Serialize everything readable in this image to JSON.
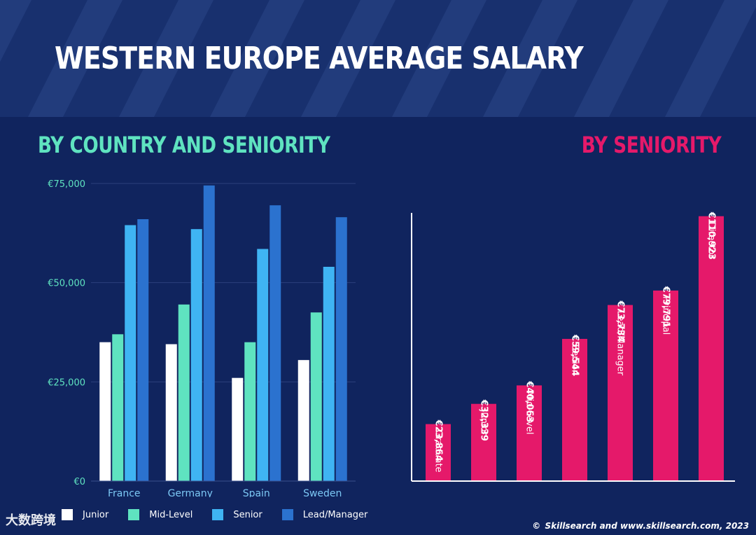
{
  "title": "WESTERN EUROPE AVERAGE SALARY",
  "watermark": "大数跨境",
  "footer": {
    "copyright": "©",
    "text": "Skillsearch and www.skillsearch.com, 2023"
  },
  "colors": {
    "junior": "#ffffff",
    "mid_level": "#5fe3c0",
    "senior": "#3fb4f3",
    "lead_manager": "#2b72cf",
    "seniority_bar": "#e5196a",
    "background": "#10245e",
    "banner": "#18306e"
  },
  "chart_data": [
    {
      "type": "bar",
      "title": "BY COUNTRY AND SENIORITY",
      "categories": [
        "France",
        "Germany",
        "Spain",
        "Sweden"
      ],
      "y_ticks": [
        "€0",
        "€25,000",
        "€50,000",
        "€75,000"
      ],
      "y_tick_values": [
        0,
        25000,
        50000,
        75000
      ],
      "ylim": [
        0,
        75000
      ],
      "series": [
        {
          "name": "Junior",
          "color_key": "junior",
          "values": [
            35000,
            34500,
            26000,
            30500
          ]
        },
        {
          "name": "Mid-Level",
          "color_key": "mid_level",
          "values": [
            37000,
            44500,
            35000,
            42500
          ]
        },
        {
          "name": "Senior",
          "color_key": "senior",
          "values": [
            64500,
            63500,
            58500,
            54000
          ]
        },
        {
          "name": "Lead/Manager",
          "color_key": "lead_manager",
          "values": [
            66000,
            74500,
            69500,
            66500
          ]
        }
      ],
      "legend_position": "bottom"
    },
    {
      "type": "bar",
      "title": "BY SENIORITY",
      "categories": [
        "Graduate",
        "Junior",
        "Mid-Level",
        "Senior",
        "Lead/Manager",
        "Principal",
        "Director"
      ],
      "values": [
        23864,
        32339,
        40063,
        59544,
        73734,
        79791,
        110923
      ],
      "data_labels": [
        "€23,864",
        "€32,339",
        "€40,063",
        "€59,544",
        "€73,734",
        "€79,791",
        "€110,923"
      ],
      "ylim": [
        0,
        117000
      ]
    }
  ]
}
